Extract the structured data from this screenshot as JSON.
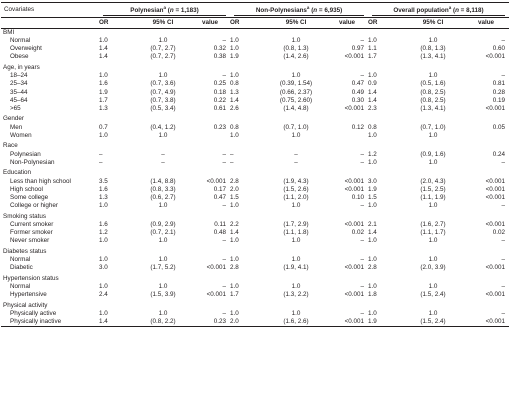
{
  "header": {
    "covariates": "Covariates",
    "group1": {
      "name": "Polynesian",
      "sup": "a",
      "n_prefix": "(",
      "n_label": "n",
      "n_value": " = 1,183)"
    },
    "group2": {
      "name": "Non-Polynesians",
      "sup": "a",
      "n_prefix": "(",
      "n_label": "n",
      "n_value": " = 6,935)"
    },
    "group3": {
      "name": "Overall population",
      "sup": "a",
      "n_prefix": "(",
      "n_label": "n",
      "n_value": " = 8,118)"
    },
    "sub": {
      "or": "OR",
      "ci": "95% CI",
      "value": "value"
    }
  },
  "rows": [
    {
      "type": "section",
      "label": "BMI"
    },
    {
      "type": "item",
      "label": "Normal",
      "v": [
        "1.0",
        "1.0",
        "–",
        "1.0",
        "1.0",
        "–",
        "1.0",
        "1.0",
        "–"
      ]
    },
    {
      "type": "item",
      "label": "Overweight",
      "v": [
        "1.4",
        "(0.7, 2.7)",
        "0.32",
        "1.0",
        "(0.8, 1.3)",
        "0.97",
        "1.1",
        "(0.8, 1.3)",
        "0.60"
      ]
    },
    {
      "type": "item",
      "label": "Obese",
      "v": [
        "1.4",
        "(0.7, 2.7)",
        "0.38",
        "1.9",
        "(1.4, 2.6)",
        "<0.001",
        "1.7",
        "(1.3, 4.1)",
        "<0.001"
      ]
    },
    {
      "type": "gap"
    },
    {
      "type": "section",
      "label": "Age, in years"
    },
    {
      "type": "item",
      "label": "18–24",
      "v": [
        "1.0",
        "1.0",
        "–",
        "1.0",
        "1.0",
        "–",
        "1.0",
        "1.0",
        "–"
      ]
    },
    {
      "type": "item",
      "label": "25–34",
      "v": [
        "1.6",
        "(0.7, 3.6)",
        "0.25",
        "0.8",
        "(0.39, 1.54)",
        "0.47",
        "0.9",
        "(0.5, 1.6)",
        "0.81"
      ]
    },
    {
      "type": "item",
      "label": "35–44",
      "v": [
        "1.9",
        "(0.7, 4.9)",
        "0.18",
        "1.3",
        "(0.66, 2.37)",
        "0.49",
        "1.4",
        "(0.8, 2.5)",
        "0.28"
      ]
    },
    {
      "type": "item",
      "label": "45–64",
      "v": [
        "1.7",
        "(0.7, 3.8)",
        "0.22",
        "1.4",
        "(0.75, 2.60)",
        "0.30",
        "1.4",
        "(0.8, 2.5)",
        "0.19"
      ]
    },
    {
      "type": "item",
      "label": ">65",
      "v": [
        "1.3",
        "(0.5, 3.4)",
        "0.61",
        "2.6",
        "(1.4, 4.8)",
        "<0.001",
        "2.3",
        "(1.3, 4.1)",
        "<0.001"
      ]
    },
    {
      "type": "gap"
    },
    {
      "type": "section",
      "label": "Gender"
    },
    {
      "type": "item",
      "label": "Men",
      "v": [
        "0.7",
        "(0.4, 1.2)",
        "0.23",
        "0.8",
        "(0.7, 1.0)",
        "0.12",
        "0.8",
        "(0.7, 1.0)",
        "0.05"
      ]
    },
    {
      "type": "item",
      "label": "Women",
      "v": [
        "1.0",
        "1.0",
        "",
        "1.0",
        "1.0",
        "",
        "1.0",
        "1.0",
        ""
      ]
    },
    {
      "type": "gap"
    },
    {
      "type": "section",
      "label": "Race"
    },
    {
      "type": "item",
      "label": "Polynesian",
      "v": [
        "–",
        "–",
        "–",
        "–",
        "–",
        "–",
        "1.2",
        "(0.9, 1.6)",
        "0.24"
      ]
    },
    {
      "type": "item",
      "label": "Non-Polynesian",
      "v": [
        "–",
        "–",
        "–",
        "–",
        "–",
        "–",
        "1.0",
        "1.0",
        "–"
      ]
    },
    {
      "type": "gap"
    },
    {
      "type": "section",
      "label": "Education"
    },
    {
      "type": "item",
      "label": "Less than high school",
      "v": [
        "3.5",
        "(1.4, 8.8)",
        "<0.001",
        "2.8",
        "(1.9, 4.3)",
        "<0.001",
        "3.0",
        "(2.0, 4.3)",
        "<0.001"
      ]
    },
    {
      "type": "item",
      "label": "High school",
      "v": [
        "1.6",
        "(0.8, 3.3)",
        "0.17",
        "2.0",
        "(1.5, 2.6)",
        "<0.001",
        "1.9",
        "(1.5, 2.5)",
        "<0.001"
      ]
    },
    {
      "type": "item",
      "label": "Some college",
      "v": [
        "1.3",
        "(0.6, 2.7)",
        "0.47",
        "1.5",
        "(1.1, 2.0)",
        "0.10",
        "1.5",
        "(1.1, 1.9)",
        "<0.001"
      ]
    },
    {
      "type": "item",
      "label": "College or higher",
      "v": [
        "1.0",
        "1.0",
        "–",
        "1.0",
        "1.0",
        "–",
        "1.0",
        "1.0",
        "–"
      ]
    },
    {
      "type": "gap"
    },
    {
      "type": "section",
      "label": "Smoking status"
    },
    {
      "type": "item",
      "label": "Current smoker",
      "v": [
        "1.6",
        "(0.9, 2.9)",
        "0.11",
        "2.2",
        "(1.7, 2.9)",
        "<0.001",
        "2.1",
        "(1.6, 2.7)",
        "<0.001"
      ]
    },
    {
      "type": "item",
      "label": "Former smoker",
      "v": [
        "1.2",
        "(0.7, 2.1)",
        "0.48",
        "1.4",
        "(1.1, 1.8)",
        "0.02",
        "1.4",
        "(1.1, 1.7)",
        "0.02"
      ]
    },
    {
      "type": "item",
      "label": "Never smoker",
      "v": [
        "1.0",
        "1.0",
        "–",
        "1.0",
        "1.0",
        "–",
        "1.0",
        "1.0",
        "–"
      ]
    },
    {
      "type": "gap"
    },
    {
      "type": "section",
      "label": "Diabetes status"
    },
    {
      "type": "item",
      "label": "Normal",
      "v": [
        "1.0",
        "1.0",
        "–",
        "1.0",
        "1.0",
        "–",
        "1.0",
        "1.0",
        "–"
      ]
    },
    {
      "type": "item",
      "label": "Diabetic",
      "v": [
        "3.0",
        "(1.7, 5.2)",
        "<0.001",
        "2.8",
        "(1.9, 4.1)",
        "<0.001",
        "2.8",
        "(2.0, 3.9)",
        "<0.001"
      ]
    },
    {
      "type": "gap"
    },
    {
      "type": "section",
      "label": "Hypertension status"
    },
    {
      "type": "item",
      "label": "Normal",
      "v": [
        "1.0",
        "1.0",
        "–",
        "1.0",
        "1.0",
        "–",
        "1.0",
        "1.0",
        "–"
      ]
    },
    {
      "type": "item",
      "label": "Hypertensive",
      "v": [
        "2.4",
        "(1.5, 3.9)",
        "<0.001",
        "1.7",
        "(1.3, 2.2)",
        "<0.001",
        "1.8",
        "(1.5, 2.4)",
        "<0.001"
      ]
    },
    {
      "type": "gap"
    },
    {
      "type": "section",
      "label": "Physical activity"
    },
    {
      "type": "item",
      "label": "Physically active",
      "v": [
        "1.0",
        "1.0",
        "–",
        "1.0",
        "1.0",
        "–",
        "1.0",
        "1.0",
        "–"
      ]
    },
    {
      "type": "item",
      "label": "Physically inactive",
      "v": [
        "1.4",
        "(0.8, 2.2)",
        "0.23",
        "2.0",
        "(1.6, 2.6)",
        "<0.001",
        "1.9",
        "(1.5, 2.4)",
        "<0.001"
      ],
      "last": true
    }
  ]
}
